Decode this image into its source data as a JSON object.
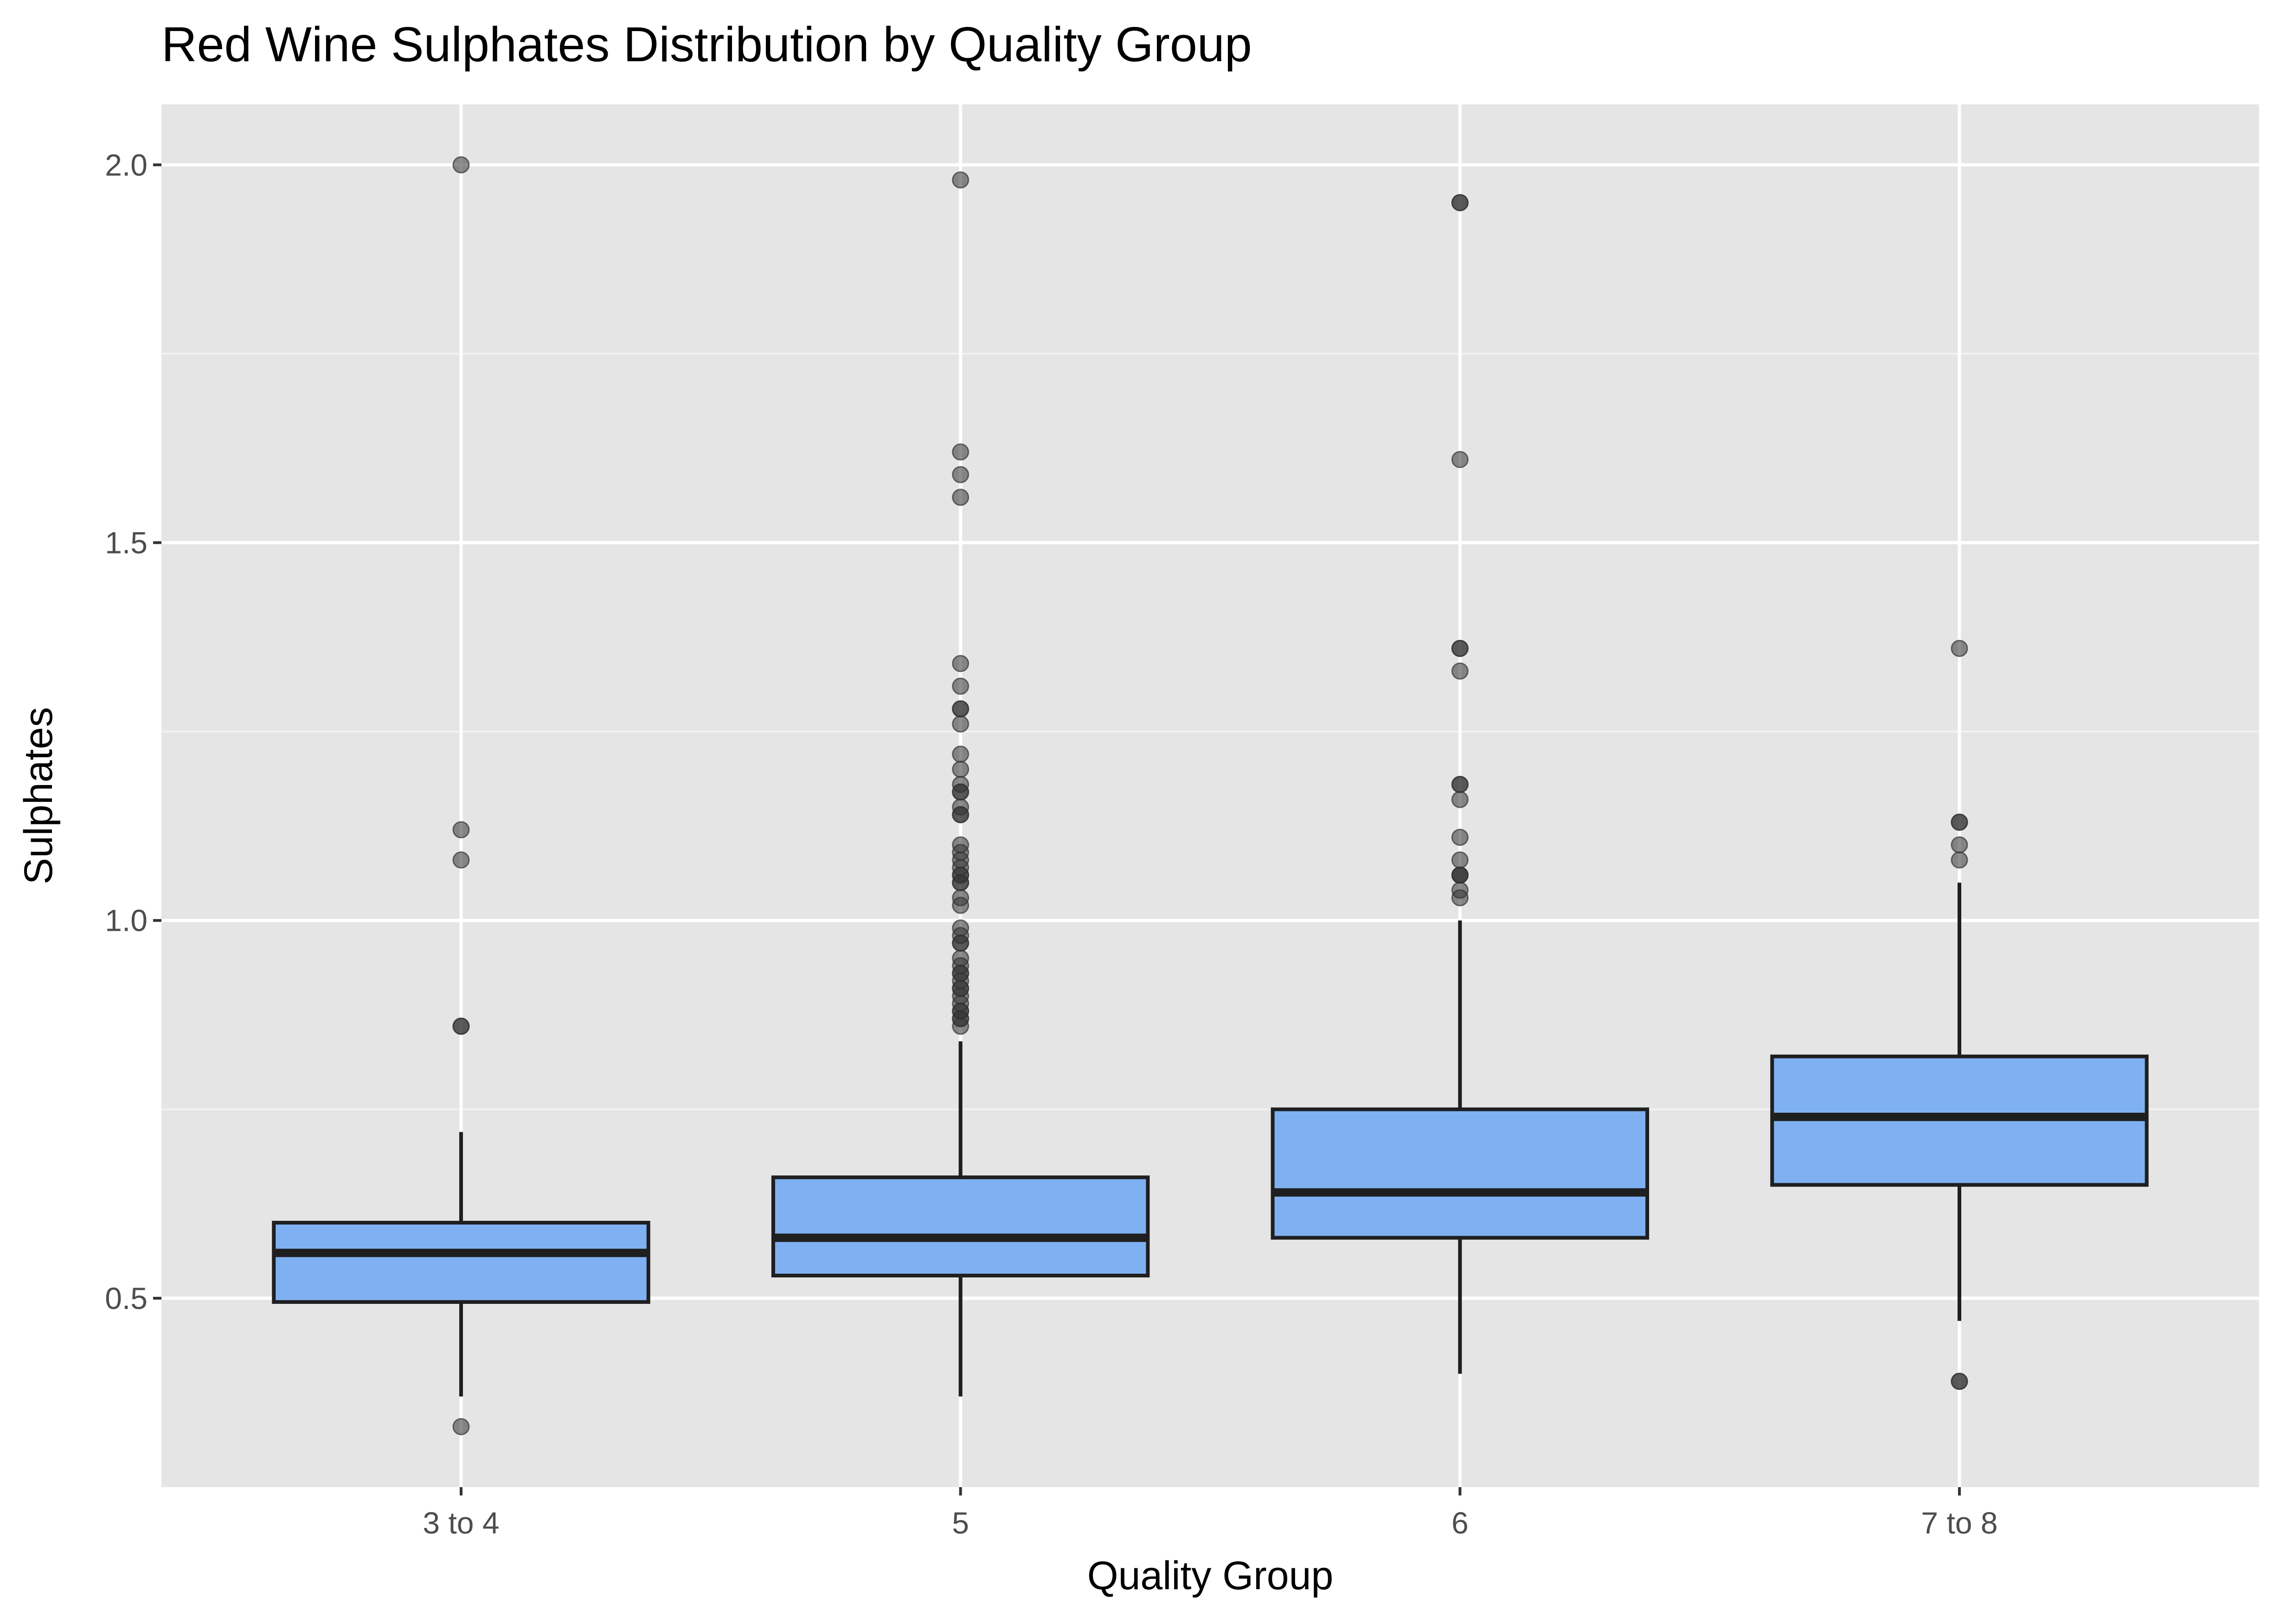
{
  "chart_data": {
    "type": "boxplot",
    "title": "Red Wine Sulphates Distribution by Quality Group",
    "xlabel": "Quality Group",
    "ylabel": "Sulphates",
    "categories": [
      "3 to 4",
      "5",
      "6",
      "7 to 8"
    ],
    "ylim": [
      0.25,
      2.08
    ],
    "y_ticks": [
      0.5,
      1.0,
      1.5,
      2.0
    ],
    "y_tick_labels": [
      "0.5",
      "1.0",
      "1.5",
      "2.0"
    ],
    "grid": true,
    "legend": "none",
    "colors": {
      "panel_background": "#e5e5e5",
      "grid_major": "#ffffff",
      "grid_minor": "#f2f2f2",
      "box_fill": "#7fb0f2",
      "box_stroke": "#1f1f1f",
      "outlier": "#333333",
      "tick_label": "#4d4d4d"
    },
    "boxes": [
      {
        "category": "3 to 4",
        "whisker_low": 0.37,
        "q1": 0.495,
        "median": 0.56,
        "q3": 0.6,
        "whisker_high": 0.72,
        "outliers": [
          0.33,
          0.86,
          0.86,
          1.08,
          1.12,
          2.0
        ]
      },
      {
        "category": "5",
        "whisker_low": 0.37,
        "q1": 0.53,
        "median": 0.58,
        "q3": 0.66,
        "whisker_high": 0.84,
        "outliers": [
          0.86,
          0.87,
          0.87,
          0.88,
          0.88,
          0.89,
          0.9,
          0.91,
          0.91,
          0.92,
          0.93,
          0.93,
          0.94,
          0.95,
          0.97,
          0.97,
          0.98,
          0.99,
          1.02,
          1.03,
          1.05,
          1.05,
          1.06,
          1.06,
          1.07,
          1.08,
          1.09,
          1.1,
          1.14,
          1.14,
          1.15,
          1.17,
          1.17,
          1.18,
          1.2,
          1.22,
          1.26,
          1.28,
          1.28,
          1.31,
          1.34,
          1.56,
          1.59,
          1.62,
          1.98
        ]
      },
      {
        "category": "6",
        "whisker_low": 0.4,
        "q1": 0.58,
        "median": 0.64,
        "q3": 0.75,
        "whisker_high": 1.0,
        "outliers": [
          1.03,
          1.04,
          1.06,
          1.06,
          1.06,
          1.08,
          1.11,
          1.16,
          1.18,
          1.18,
          1.33,
          1.36,
          1.36,
          1.61,
          1.95,
          1.95
        ]
      },
      {
        "category": "7 to 8",
        "whisker_low": 0.47,
        "q1": 0.65,
        "median": 0.74,
        "q3": 0.82,
        "whisker_high": 1.05,
        "outliers": [
          0.39,
          0.39,
          1.08,
          1.1,
          1.13,
          1.13,
          1.36
        ]
      }
    ]
  }
}
